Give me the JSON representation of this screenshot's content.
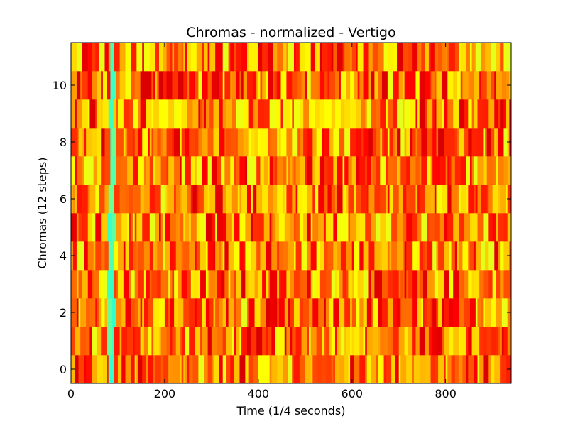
{
  "chart_data": {
    "type": "heatmap",
    "title": "Chromas - normalized - Vertigo",
    "xlabel": "Time (1/4 seconds)",
    "ylabel": "Chromas (12 steps)",
    "xlim": [
      0,
      940
    ],
    "ylim": [
      -0.5,
      11.5
    ],
    "xticks": [
      0,
      200,
      400,
      600,
      800
    ],
    "yticks": [
      0,
      2,
      4,
      6,
      8,
      10
    ],
    "n_rows": 12,
    "n_frames": 940,
    "colormap": "jet",
    "value_range_shown": [
      0.5,
      1.0
    ],
    "grid": false,
    "colors": {
      "high": "#d20000",
      "mid": "#ff7a00",
      "low": "#ffff00",
      "lowest": "#2bffcc"
    },
    "features": [
      {
        "frames": [
          84,
          90
        ],
        "rows": "all",
        "value": 0.42,
        "label": "cyan/yellow vertical stripe"
      },
      {
        "frames": [
          165,
          240
        ],
        "rows": [
          9
        ],
        "value": 0.62,
        "label": "yellow-green patch"
      },
      {
        "frames": [
          530,
          620
        ],
        "rows": [
          9
        ],
        "value": 0.62,
        "label": "yellow-green patch"
      },
      {
        "frames": [
          570,
          620
        ],
        "rows": [
          1
        ],
        "value": 0.64,
        "label": "yellow-green patch"
      }
    ]
  }
}
